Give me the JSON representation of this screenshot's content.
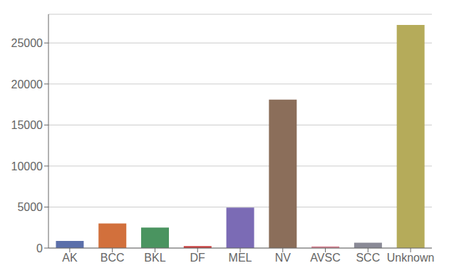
{
  "chart_data": {
    "type": "bar",
    "categories": [
      "AK",
      "BCC",
      "BKL",
      "DF",
      "MEL",
      "NV",
      "AVSC",
      "SCC",
      "Unknown"
    ],
    "values": [
      867,
      3000,
      2500,
      239,
      4922,
      18105,
      197,
      657,
      27197
    ],
    "colors": [
      "#5b6faa",
      "#d2703c",
      "#4a9460",
      "#c94040",
      "#7b6bb5",
      "#8b6e5a",
      "#d48090",
      "#8a8a96",
      "#b5ab5a"
    ],
    "ylim": [
      0,
      28500
    ],
    "yticks": [
      0,
      5000,
      10000,
      15000,
      20000,
      25000
    ],
    "grid": true
  }
}
